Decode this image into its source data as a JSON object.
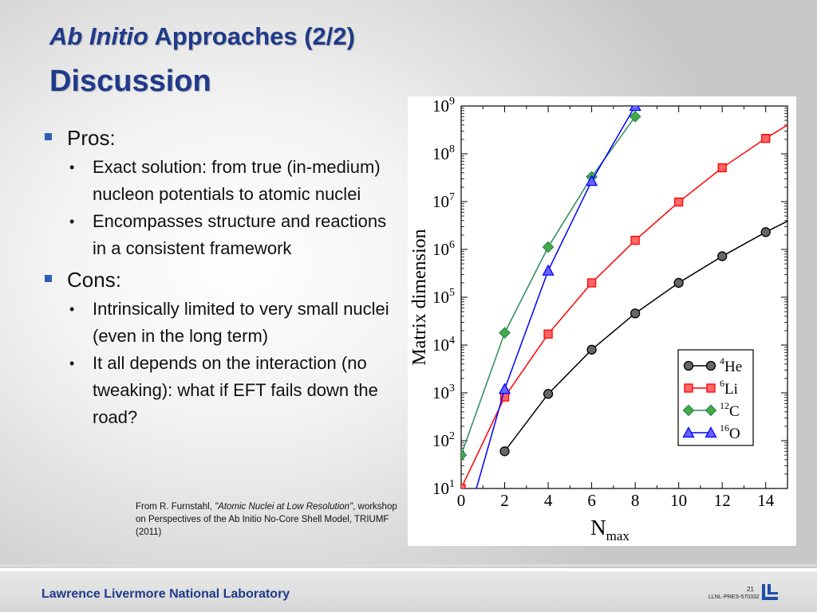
{
  "slide": {
    "title_italic": "Ab Initio",
    "title_rest": " Approaches (2/2)",
    "subtitle": "Discussion",
    "pros": {
      "label": "Pros:",
      "items": [
        "Exact solution: from true (in-medium) nucleon potentials to atomic nuclei",
        "Encompasses structure and reactions in a consistent framework"
      ]
    },
    "cons": {
      "label": "Cons:",
      "items": [
        "Intrinsically limited to very small nuclei (even in the long term)",
        "It all depends on the interaction (no tweaking): what if EFT fails down the road?"
      ]
    },
    "citation": {
      "prefix": "From  R. Furnstahl, ",
      "title": "\"Atomic Nuclei at Low Resolution\"",
      "suffix": ", workshop on Perspectives of the Ab Initio No-Core Shell Model, TRIUMF (2011)"
    }
  },
  "footer": {
    "lab": "Lawrence Livermore National Laboratory",
    "slide_number": "21",
    "pres_id": "LLNL-PRES-570332"
  },
  "chart_data": {
    "type": "line",
    "xlabel_main": "N",
    "xlabel_sub": "max",
    "ylabel": "Matrix dimension",
    "xlim": [
      0,
      15
    ],
    "ylim_log10": [
      1,
      9
    ],
    "yscale": "log",
    "x_ticks": [
      "0",
      "2",
      "4",
      "6",
      "8",
      "10",
      "12",
      "14"
    ],
    "y_ticks": [
      "10^1",
      "10^2",
      "10^3",
      "10^4",
      "10^5",
      "10^6",
      "10^7",
      "10^8",
      "10^9"
    ],
    "legend_position": "lower-right",
    "series": [
      {
        "name": "4He",
        "mass": "4",
        "element": "He",
        "color": "#000000",
        "fill": "#666666",
        "marker": "circle",
        "x": [
          2,
          4,
          6,
          8,
          10,
          12,
          14
        ],
        "y": [
          60,
          950,
          8000,
          46000,
          200000,
          720000,
          2300000
        ],
        "ext": [
          15,
          3900000
        ]
      },
      {
        "name": "6Li",
        "mass": "6",
        "element": "Li",
        "color": "#ff0000",
        "fill": "#ff6666",
        "marker": "square",
        "x": [
          0,
          2,
          4,
          6,
          8,
          10,
          12,
          14
        ],
        "y": [
          10,
          820,
          17000,
          200000,
          1550000,
          9800000,
          51000000,
          210000000
        ],
        "ext": [
          15,
          400000000
        ]
      },
      {
        "name": "12C",
        "mass": "12",
        "element": "C",
        "color": "#2e8b57",
        "fill": "#44aa44",
        "marker": "diamond",
        "x": [
          0,
          2,
          4,
          6,
          8
        ],
        "y": [
          50,
          18000,
          1120000,
          33000000,
          600000000
        ]
      },
      {
        "name": "16O",
        "mass": "16",
        "element": "O",
        "color": "#0000ff",
        "fill": "#6666ff",
        "marker": "triangle",
        "x": [
          2,
          4,
          6,
          8
        ],
        "y": [
          1200,
          360000,
          27000000,
          1000000000
        ],
        "pre": [
          0.7,
          10
        ]
      }
    ]
  }
}
